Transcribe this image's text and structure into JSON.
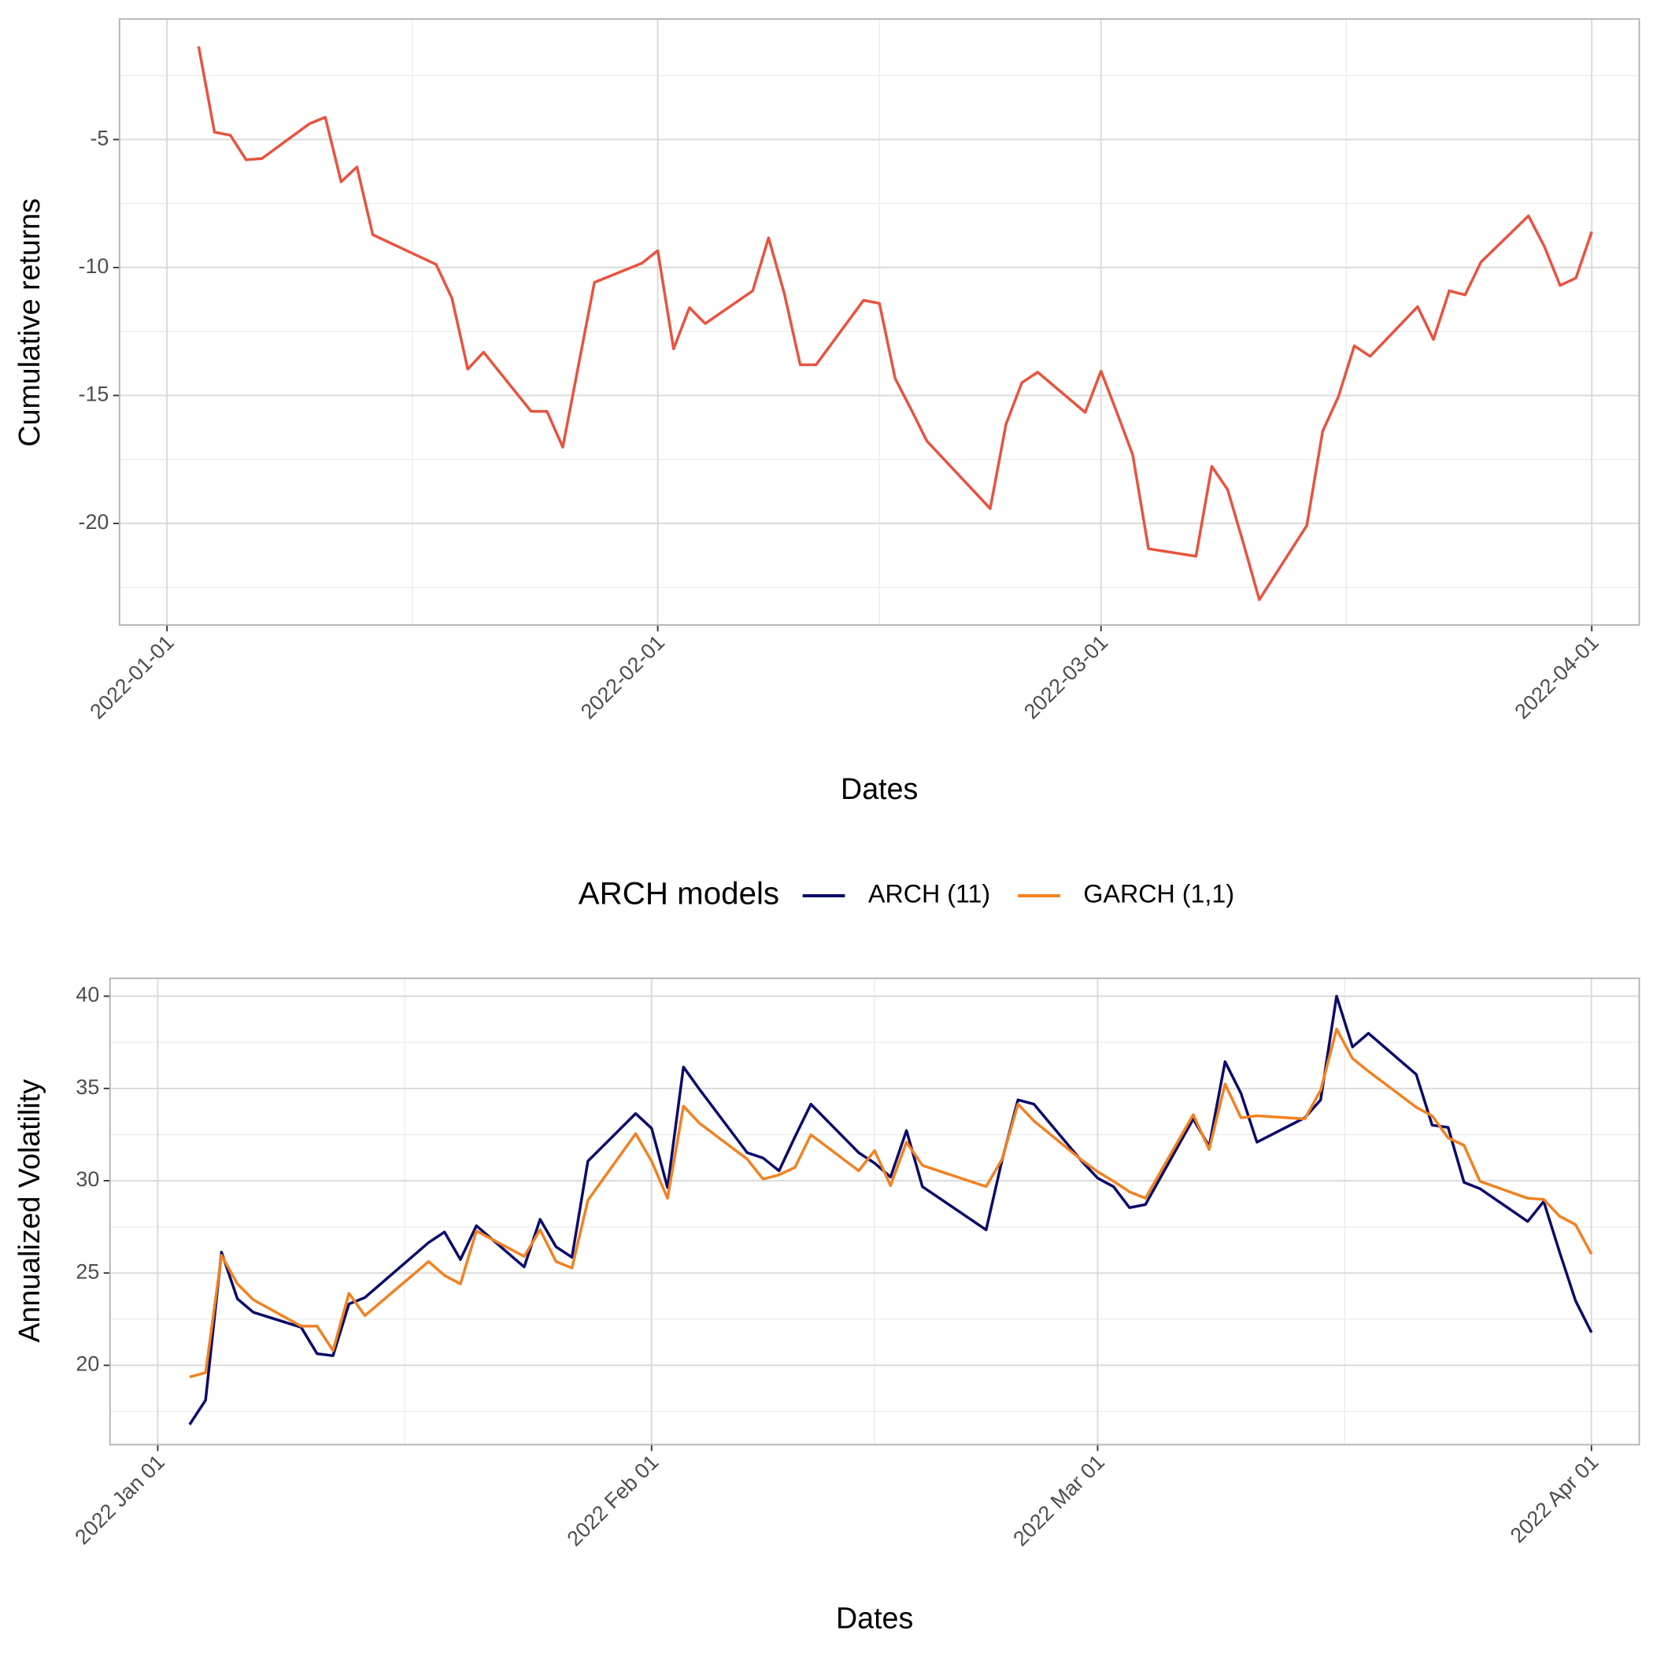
{
  "chart_data": [
    {
      "type": "line",
      "x_label": "Dates",
      "y_label": "Cumulative returns",
      "x": [
        "2022-01-03",
        "2022-01-04",
        "2022-01-05",
        "2022-01-06",
        "2022-01-07",
        "2022-01-10",
        "2022-01-11",
        "2022-01-12",
        "2022-01-13",
        "2022-01-14",
        "2022-01-18",
        "2022-01-19",
        "2022-01-20",
        "2022-01-21",
        "2022-01-24",
        "2022-01-25",
        "2022-01-26",
        "2022-01-27",
        "2022-01-28",
        "2022-01-31",
        "2022-02-01",
        "2022-02-02",
        "2022-02-03",
        "2022-02-04",
        "2022-02-07",
        "2022-02-08",
        "2022-02-09",
        "2022-02-10",
        "2022-02-11",
        "2022-02-14",
        "2022-02-15",
        "2022-02-16",
        "2022-02-17",
        "2022-02-18",
        "2022-02-22",
        "2022-02-23",
        "2022-02-24",
        "2022-02-25",
        "2022-02-28",
        "2022-03-01",
        "2022-03-02",
        "2022-03-03",
        "2022-03-04",
        "2022-03-07",
        "2022-03-08",
        "2022-03-09",
        "2022-03-10",
        "2022-03-11",
        "2022-03-14",
        "2022-03-15",
        "2022-03-16",
        "2022-03-17",
        "2022-03-18",
        "2022-03-21",
        "2022-03-22",
        "2022-03-23",
        "2022-03-24",
        "2022-03-25",
        "2022-03-28",
        "2022-03-29",
        "2022-03-30",
        "2022-03-31",
        "2022-04-01"
      ],
      "values": [
        -1.36,
        -4.71,
        -4.83,
        -5.79,
        -5.74,
        -4.38,
        -4.13,
        -6.65,
        -6.07,
        -8.72,
        -9.88,
        -11.2,
        -13.97,
        -13.31,
        -15.62,
        -15.62,
        -17.02,
        -13.8,
        -10.58,
        -9.83,
        -9.34,
        -13.18,
        -11.57,
        -12.19,
        -10.91,
        -8.84,
        -11.03,
        -13.8,
        -13.8,
        -11.28,
        -11.4,
        -14.34,
        -15.54,
        -16.78,
        -19.42,
        -16.12,
        -14.5,
        -14.09,
        -15.66,
        -14.05,
        -15.66,
        -17.31,
        -20.99,
        -21.28,
        -17.77,
        -18.68,
        -20.79,
        -22.98,
        -20.08,
        -16.4,
        -15.04,
        -13.06,
        -13.47,
        -11.53,
        -12.81,
        -10.91,
        -11.07,
        -9.79,
        -7.98,
        -9.17,
        -10.7,
        -10.41,
        -8.6
      ],
      "color": "#e8533f",
      "xlim": [
        "2021-12-29",
        "2022-04-04"
      ],
      "xticks": [
        "2022-01-01",
        "2022-02-01",
        "2022-03-01",
        "2022-04-01"
      ],
      "ylim": [
        -23.97,
        -0.29
      ],
      "yticks": [
        -20,
        -15,
        -10,
        -5
      ],
      "grid": true
    },
    {
      "type": "line",
      "x_label": "Dates",
      "y_label": "Annualized Volatility",
      "legend_title": "ARCH models",
      "legend_position": "top",
      "x": [
        "2022-01-03",
        "2022-01-04",
        "2022-01-05",
        "2022-01-06",
        "2022-01-07",
        "2022-01-10",
        "2022-01-11",
        "2022-01-12",
        "2022-01-13",
        "2022-01-14",
        "2022-01-18",
        "2022-01-19",
        "2022-01-20",
        "2022-01-21",
        "2022-01-24",
        "2022-01-25",
        "2022-01-26",
        "2022-01-27",
        "2022-01-28",
        "2022-01-31",
        "2022-02-01",
        "2022-02-02",
        "2022-02-03",
        "2022-02-04",
        "2022-02-07",
        "2022-02-08",
        "2022-02-09",
        "2022-02-10",
        "2022-02-11",
        "2022-02-14",
        "2022-02-15",
        "2022-02-16",
        "2022-02-17",
        "2022-02-18",
        "2022-02-22",
        "2022-02-23",
        "2022-02-24",
        "2022-02-25",
        "2022-02-28",
        "2022-03-01",
        "2022-03-02",
        "2022-03-03",
        "2022-03-04",
        "2022-03-07",
        "2022-03-08",
        "2022-03-09",
        "2022-03-10",
        "2022-03-11",
        "2022-03-14",
        "2022-03-15",
        "2022-03-16",
        "2022-03-17",
        "2022-03-18",
        "2022-03-21",
        "2022-03-22",
        "2022-03-23",
        "2022-03-24",
        "2022-03-25",
        "2022-03-28",
        "2022-03-29",
        "2022-03-30",
        "2022-03-31",
        "2022-04-01"
      ],
      "series": [
        {
          "name": "ARCH (11)",
          "color": "#0b0b6b",
          "values": [
            16.79,
            18.11,
            26.13,
            23.6,
            22.87,
            22.06,
            20.63,
            20.52,
            23.32,
            23.67,
            26.65,
            27.22,
            25.73,
            27.56,
            25.33,
            27.91,
            26.42,
            25.85,
            31.06,
            33.64,
            32.84,
            29.63,
            36.16,
            34.96,
            31.52,
            31.23,
            30.54,
            32.38,
            34.15,
            31.52,
            30.95,
            30.2,
            32.72,
            29.68,
            27.34,
            31.12,
            34.38,
            34.15,
            31.06,
            30.14,
            29.68,
            28.54,
            28.71,
            33.35,
            31.86,
            36.45,
            34.73,
            32.09,
            33.41,
            34.38,
            40.0,
            37.25,
            37.99,
            35.76,
            33.01,
            32.89,
            29.91,
            29.57,
            27.79,
            28.88,
            26.13,
            23.5,
            21.78
          ]
        },
        {
          "name": "GARCH (1,1)",
          "color": "#f28121",
          "values": [
            19.37,
            19.6,
            25.96,
            24.41,
            23.55,
            22.12,
            22.12,
            20.8,
            23.9,
            22.69,
            25.62,
            24.87,
            24.41,
            27.28,
            25.9,
            27.34,
            25.62,
            25.27,
            28.94,
            32.55,
            31.06,
            29.05,
            34.04,
            33.12,
            31.17,
            30.09,
            30.32,
            30.72,
            32.49,
            30.54,
            31.63,
            29.74,
            32.09,
            30.83,
            29.68,
            31.17,
            34.15,
            33.24,
            31.12,
            30.49,
            29.97,
            29.4,
            29.05,
            33.58,
            31.69,
            35.24,
            33.41,
            33.52,
            33.35,
            34.9,
            38.22,
            36.62,
            35.93,
            33.98,
            33.52,
            32.32,
            31.92,
            29.97,
            29.05,
            28.99,
            28.08,
            27.62,
            26.02
          ]
        }
      ],
      "xlim": [
        "2021-12-29",
        "2022-04-04"
      ],
      "xticks": [
        {
          "value": "2022-01-01",
          "label": "2022 Jan 01"
        },
        {
          "value": "2022-02-01",
          "label": "2022 Feb 01"
        },
        {
          "value": "2022-03-01",
          "label": "2022 Mar 01"
        },
        {
          "value": "2022-04-01",
          "label": "2022 Apr 01"
        }
      ],
      "ylim": [
        15.7,
        40.97
      ],
      "yticks": [
        20,
        25,
        30,
        35,
        40
      ],
      "grid": true
    }
  ]
}
